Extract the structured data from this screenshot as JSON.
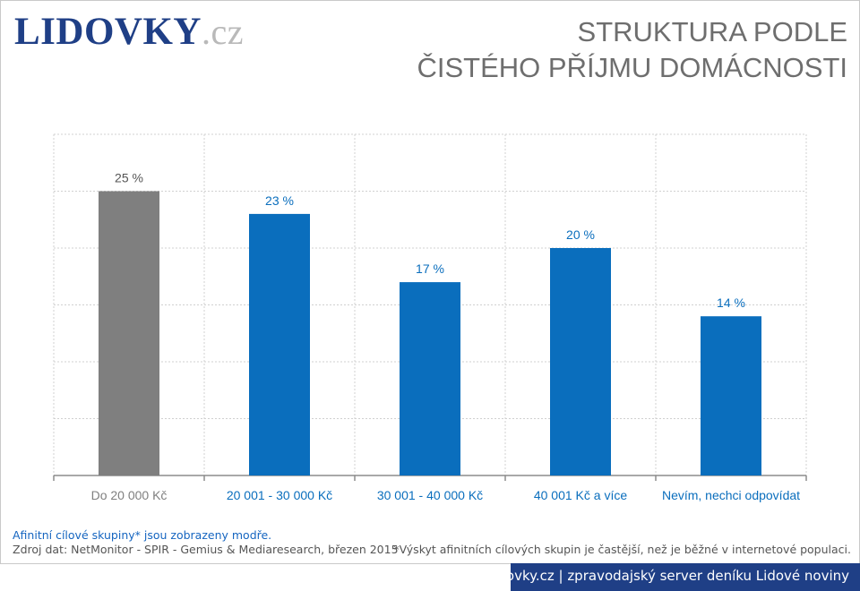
{
  "header": {
    "logo_main": "LIDOVKY",
    "logo_tld": ".cz",
    "title_line1": "STRUKTURA PODLE",
    "title_line2": "ČISTÉHO PŘÍJMU DOMÁCNOSTI"
  },
  "colors": {
    "highlight_bar": "#0a6ebd",
    "other_bar": "#7f7f7f",
    "brand": "#1f3f86",
    "value_label": "#0a6ebd",
    "gridline": "#d0d0d0"
  },
  "chart_data": {
    "type": "bar",
    "title": "STRUKTURA PODLE ČISTÉHO PŘÍJMU DOMÁCNOSTI",
    "categories": [
      "Do 20 000 Kč",
      "20 001 - 30 000 Kč",
      "30 001 - 40 000 Kč",
      "40 001 Kč a více",
      "Nevím, nechci odpovídat"
    ],
    "values": [
      25,
      23,
      17,
      20,
      14
    ],
    "value_labels": [
      "25 %",
      "23 %",
      "17 %",
      "20 %",
      "14 %"
    ],
    "highlighted": [
      false,
      true,
      true,
      true,
      true
    ],
    "unit": "%",
    "ylim": [
      0,
      30
    ],
    "grid": true,
    "legend": "none"
  },
  "notes": {
    "highlight_note": "Afinitní cílové skupiny* jsou zobrazeny modře.",
    "source": "Zdroj dat: NetMonitor - SPIR - Gemius & Mediaresearch, březen 2015",
    "footnote": "*Výskyt afinitních cílových skupin je častější, než je běžné v internetové populaci."
  },
  "footer": {
    "text": "Lidovky.cz | zpravodajský server deníku Lidové noviny"
  }
}
